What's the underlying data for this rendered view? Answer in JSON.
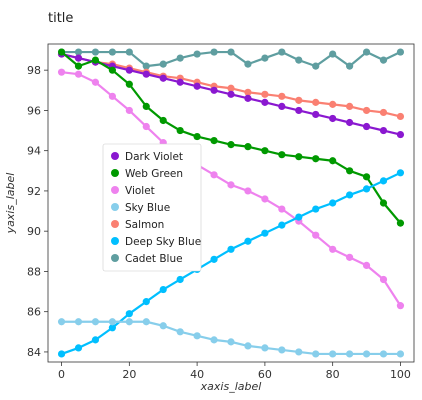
{
  "chart_data": {
    "type": "line",
    "title": "title",
    "xlabel": "xaxis_label",
    "ylabel": "yaxis_label",
    "xlim": [
      -4,
      104
    ],
    "ylim": [
      83.5,
      99.3
    ],
    "xticks": [
      0,
      20,
      40,
      60,
      80,
      100
    ],
    "yticks": [
      84,
      86,
      88,
      90,
      92,
      94,
      96,
      98
    ],
    "x": [
      0,
      5,
      10,
      15,
      20,
      25,
      30,
      35,
      40,
      45,
      50,
      55,
      60,
      65,
      70,
      75,
      80,
      85,
      90,
      95,
      100
    ],
    "grid": false,
    "legend_position": "center",
    "series": [
      {
        "name": "Dark Violet",
        "color": "#8a18d0",
        "values": [
          98.8,
          98.6,
          98.4,
          98.2,
          98.0,
          97.8,
          97.6,
          97.4,
          97.2,
          97.0,
          96.8,
          96.6,
          96.4,
          96.2,
          96.0,
          95.8,
          95.6,
          95.4,
          95.2,
          95.0,
          94.8
        ]
      },
      {
        "name": "Web Green",
        "color": "#009900",
        "values": [
          98.9,
          98.2,
          98.5,
          98.0,
          97.3,
          96.2,
          95.5,
          95.0,
          94.7,
          94.5,
          94.3,
          94.2,
          94.0,
          93.8,
          93.7,
          93.6,
          93.5,
          93.0,
          92.7,
          91.4,
          90.4
        ]
      },
      {
        "name": "Violet",
        "color": "#ee82ee",
        "values": [
          97.9,
          97.8,
          97.4,
          96.7,
          96.0,
          95.2,
          94.4,
          93.8,
          93.3,
          92.8,
          92.3,
          92.0,
          91.6,
          91.1,
          90.5,
          89.8,
          89.1,
          88.7,
          88.3,
          87.6,
          86.3
        ]
      },
      {
        "name": "Sky Blue",
        "color": "#87ceeb",
        "values": [
          85.5,
          85.5,
          85.5,
          85.5,
          85.5,
          85.5,
          85.3,
          85.0,
          84.8,
          84.6,
          84.5,
          84.3,
          84.2,
          84.1,
          84.0,
          83.9,
          83.9,
          83.9,
          83.9,
          83.9,
          83.9
        ]
      },
      {
        "name": "Salmon",
        "color": "#fa8072",
        "values": [
          98.8,
          98.6,
          98.4,
          98.3,
          98.1,
          97.9,
          97.7,
          97.6,
          97.4,
          97.2,
          97.1,
          96.9,
          96.8,
          96.7,
          96.5,
          96.4,
          96.3,
          96.2,
          96.0,
          95.9,
          95.7
        ]
      },
      {
        "name": "Deep Sky Blue",
        "color": "#00bfff",
        "values": [
          83.9,
          84.2,
          84.6,
          85.2,
          85.9,
          86.5,
          87.1,
          87.6,
          88.1,
          88.6,
          89.1,
          89.5,
          89.9,
          90.3,
          90.7,
          91.1,
          91.4,
          91.8,
          92.1,
          92.5,
          92.9
        ]
      },
      {
        "name": "Cadet Blue",
        "color": "#5f9ea0",
        "values": [
          98.9,
          98.9,
          98.9,
          98.9,
          98.9,
          98.2,
          98.3,
          98.6,
          98.8,
          98.9,
          98.9,
          98.3,
          98.6,
          98.9,
          98.5,
          98.2,
          98.8,
          98.2,
          98.9,
          98.5,
          98.9
        ]
      }
    ]
  }
}
